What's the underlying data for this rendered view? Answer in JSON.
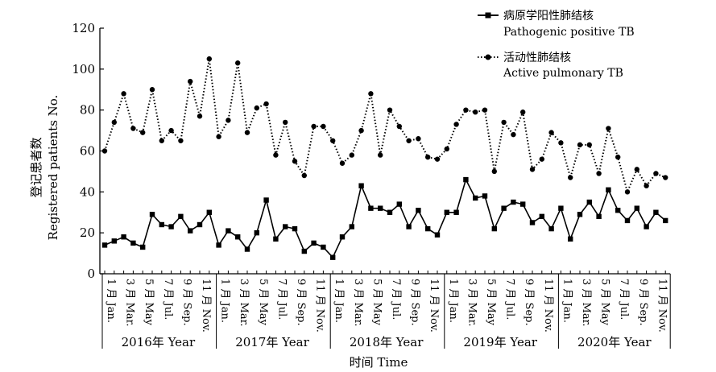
{
  "chart_data": {
    "type": "line",
    "ylabel_cn": "登记患者数",
    "ylabel_en": "Registered patients No.",
    "xlabel": "时间 Time",
    "ylim": [
      0,
      120
    ],
    "yticks": [
      "0",
      "20",
      "40",
      "60",
      "80",
      "100",
      "120"
    ],
    "legend_placement": "top-right",
    "grid": false,
    "years": [
      "2016年 Year",
      "2017年 Year",
      "2018年 Year",
      "2019年 Year",
      "2020年 Year"
    ],
    "month_labels": [
      "1 月 Jan.",
      "3 月 Mar.",
      "5 月 May",
      "7 月 Jul.",
      "9 月 Sep.",
      "11 月 Nov."
    ],
    "series": [
      {
        "name_cn": "病原学阳性肺结核",
        "name_en": "Pathogenic positive TB",
        "style": "solid",
        "marker": "square",
        "values": [
          14,
          16,
          18,
          15,
          13,
          29,
          24,
          23,
          28,
          21,
          24,
          30,
          14,
          21,
          18,
          12,
          20,
          36,
          17,
          23,
          22,
          11,
          15,
          13,
          8,
          18,
          23,
          43,
          32,
          32,
          30,
          34,
          23,
          31,
          22,
          19,
          30,
          30,
          46,
          37,
          38,
          22,
          32,
          35,
          34,
          25,
          28,
          22,
          32,
          17,
          29,
          35,
          28,
          41,
          31,
          26,
          32,
          23,
          30,
          26
        ]
      },
      {
        "name_cn": "活动性肺结核",
        "name_en": "Active pulmonary TB",
        "style": "dotted",
        "marker": "circle",
        "values": [
          60,
          74,
          88,
          71,
          69,
          90,
          65,
          70,
          65,
          94,
          77,
          105,
          67,
          75,
          103,
          69,
          81,
          83,
          58,
          74,
          55,
          48,
          72,
          72,
          65,
          54,
          58,
          70,
          88,
          58,
          80,
          72,
          65,
          66,
          57,
          56,
          61,
          73,
          80,
          79,
          80,
          50,
          74,
          68,
          79,
          51,
          56,
          69,
          64,
          47,
          63,
          63,
          49,
          71,
          57,
          40,
          51,
          43,
          49,
          47
        ]
      }
    ]
  }
}
